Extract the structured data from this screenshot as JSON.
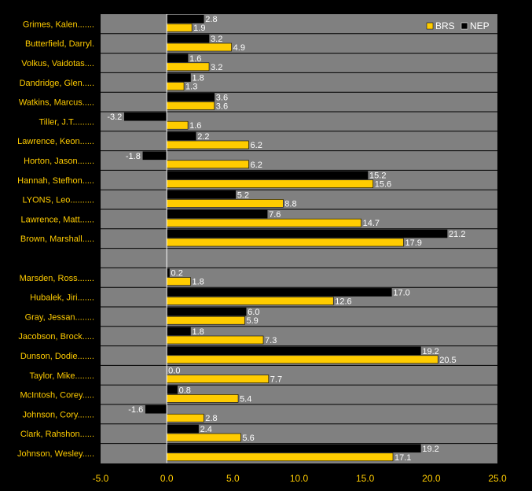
{
  "chart_data": {
    "type": "bar",
    "orientation": "horizontal",
    "categories": [
      "Grimes, Kalen.......",
      "Butterfield, Darryl.",
      "Volkus, Vaidotas....",
      "Dandridge, Glen.....",
      "Watkins, Marcus.....",
      "Tiller, J.T.........",
      "Lawrence, Keon......",
      "Horton, Jason.......",
      "Hannah, Stefhon.....",
      "LYONS, Leo..........",
      "Lawrence, Matt......",
      "Brown, Marshall.....",
      "",
      "Marsden, Ross.......",
      "Hubalek, Jiri.......",
      "Gray, Jessan........",
      "Jacobson, Brock.....",
      "Dunson, Dodie.......",
      "Taylor, Mike........",
      "McIntosh, Corey.....",
      "Johnson, Cory.......",
      "Clark, Rahshon......",
      "Johnson, Wesley....."
    ],
    "series": [
      {
        "name": "NEP",
        "color": "#000000",
        "values": [
          2.8,
          3.2,
          1.6,
          1.8,
          3.6,
          -3.2,
          2.2,
          -1.8,
          15.2,
          5.2,
          7.6,
          21.2,
          null,
          0.2,
          17.0,
          6.0,
          1.8,
          19.2,
          0.0,
          0.8,
          -1.6,
          2.4,
          19.2
        ],
        "labels": [
          "2.8",
          "3.2",
          "1.6",
          "1.8",
          "3.6",
          "-3.2",
          "2.2",
          "-1.8",
          "15.2",
          "5.2",
          "7.6",
          "21.2",
          "",
          "0.2",
          "17.0",
          "6.0",
          "1.8",
          "19.2",
          "0.0",
          "0.8",
          "-1.6",
          "2.4",
          "19.2"
        ]
      },
      {
        "name": "BRS",
        "color": "#ffcc00",
        "values": [
          1.9,
          4.9,
          3.2,
          1.3,
          3.6,
          1.6,
          6.2,
          6.2,
          15.6,
          8.8,
          14.7,
          17.9,
          null,
          1.8,
          12.6,
          5.9,
          7.3,
          20.5,
          7.7,
          5.4,
          2.8,
          5.6,
          17.1
        ],
        "labels": [
          "1.9",
          "4.9",
          "3.2",
          "1.3",
          "3.6",
          "1.6",
          "6.2",
          "6.2",
          "15.6",
          "8.8",
          "14.7",
          "17.9",
          "",
          "1.8",
          "12.6",
          "5.9",
          "7.3",
          "20.5",
          "7.7",
          "5.4",
          "2.8",
          "5.6",
          "17.1"
        ]
      }
    ],
    "legend": {
      "position": "top-right",
      "entries": [
        "BRS",
        "NEP"
      ]
    },
    "xlim": [
      -5.0,
      25.0
    ],
    "x_ticks": [
      {
        "value": -5.0,
        "label": "-5.0"
      },
      {
        "value": 0.0,
        "label": "0.0"
      },
      {
        "value": 5.0,
        "label": "5.0"
      },
      {
        "value": 10.0,
        "label": "10.0"
      },
      {
        "value": 15.0,
        "label": "15.0"
      },
      {
        "value": 20.0,
        "label": "20.0"
      },
      {
        "value": 25.0,
        "label": "25.0"
      }
    ],
    "grid": "horizontal",
    "title": "",
    "xlabel": "",
    "ylabel": ""
  },
  "colors": {
    "background": "#000000",
    "plot_area": "#808080",
    "category_text": "#ffcc00",
    "tick_text": "#ffcc00",
    "value_text": "#ffffff",
    "legend_text": "#ffffff",
    "gridline": "#000000",
    "zero_line": "#ffffff"
  }
}
